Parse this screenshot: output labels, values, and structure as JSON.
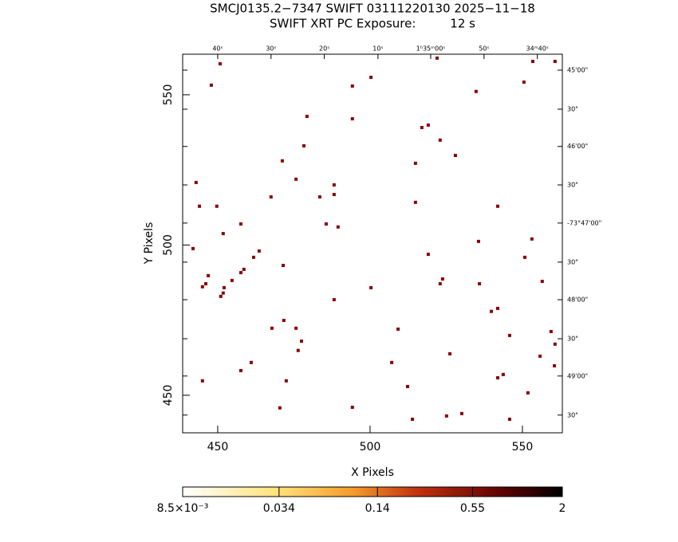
{
  "chart_data": {
    "type": "scatter",
    "title": "SMCJ0135.2−7347 SWIFT 03111220130 2025−11−18",
    "subtitle": "SWIFT XRT PC Exposure:         12 s",
    "x_label": "X Pixels",
    "y_label": "Y Pixels",
    "color": "#8b0000",
    "xlim": [
      438.5,
      563.1
    ],
    "ylim": [
      437.5,
      563.5
    ],
    "xticks": [
      450,
      500,
      550
    ],
    "yticks": [
      450,
      500,
      550
    ],
    "x2ticks": [
      {
        "value": 450.0,
        "label": "40ˢ"
      },
      {
        "value": 467.5,
        "label": "30ˢ"
      },
      {
        "value": 485.0,
        "label": "20ˢ"
      },
      {
        "value": 502.6,
        "label": "10ˢ"
      },
      {
        "value": 519.9,
        "label": "1ʰ35ᵐ00ˢ"
      },
      {
        "value": 537.4,
        "label": "50ˢ"
      },
      {
        "value": 554.9,
        "label": "34ᵐ40ˢ"
      }
    ],
    "y2ticks": [
      {
        "value": 558.2,
        "label": "45'00\""
      },
      {
        "value": 545.2,
        "label": "30\""
      },
      {
        "value": 532.8,
        "label": "46'00\""
      },
      {
        "value": 520.0,
        "label": "30\""
      },
      {
        "value": 507.3,
        "label": "-73°47'00\""
      },
      {
        "value": 494.3,
        "label": "30\""
      },
      {
        "value": 481.8,
        "label": "48'00\""
      },
      {
        "value": 468.8,
        "label": "30\""
      },
      {
        "value": 456.4,
        "label": "49'00\""
      },
      {
        "value": 443.4,
        "label": "30\""
      }
    ],
    "x": [
      450.8,
      447.9,
      442.9,
      444.0,
      449.7,
      441.9,
      451.8,
      457.6,
      463.6,
      461.8,
      458.6,
      457.6,
      446.9,
      446.1,
      445.0,
      452.1,
      454.7,
      451.8,
      451.0,
      471.5,
      467.5,
      471.2,
      475.7,
      478.3,
      479.3,
      494.2,
      500.3,
      494.2,
      488.2,
      488.2,
      483.5,
      485.6,
      489.5,
      488.2,
      500.3,
      471.7,
      467.8,
      475.7,
      477.5,
      476.4,
      461.0,
      457.6,
      445.0,
      472.5,
      470.4,
      494.2,
      509.2,
      507.1,
      512.3,
      513.9,
      514.9,
      517.0,
      519.1,
      522.0,
      523.0,
      528.0,
      534.8,
      514.9,
      519.1,
      523.0,
      523.8,
      535.6,
      535.9,
      541.9,
      539.8,
      541.9,
      545.8,
      526.2,
      541.9,
      543.7,
      530.1,
      525.1,
      545.8,
      550.5,
      553.4,
      560.7,
      553.1,
      550.8,
      556.5,
      559.4,
      560.7,
      555.8,
      560.5,
      551.8
    ],
    "y": [
      560.3,
      553.2,
      520.8,
      512.9,
      512.9,
      498.8,
      503.8,
      507.0,
      498.0,
      495.9,
      491.9,
      490.8,
      489.8,
      487.1,
      486.1,
      485.8,
      488.2,
      484.0,
      482.9,
      493.2,
      516.0,
      528.0,
      521.9,
      533.0,
      542.8,
      552.9,
      555.8,
      542.0,
      520.0,
      516.8,
      516.0,
      507.0,
      506.0,
      481.8,
      485.8,
      474.9,
      472.3,
      472.3,
      468.0,
      464.9,
      460.9,
      458.2,
      454.8,
      454.8,
      445.8,
      446.0,
      472.0,
      460.9,
      452.9,
      442.0,
      527.2,
      539.1,
      539.9,
      562.2,
      534.9,
      529.8,
      551.1,
      514.2,
      496.9,
      487.1,
      488.7,
      501.2,
      487.1,
      512.9,
      477.9,
      478.9,
      469.9,
      463.8,
      455.8,
      456.9,
      443.9,
      443.1,
      442.0,
      554.2,
      561.1,
      561.1,
      502.0,
      495.9,
      487.9,
      471.2,
      467.0,
      463.0,
      459.8,
      450.8
    ],
    "colorbar": {
      "log": true,
      "lim": [
        0.0085,
        2
      ],
      "ticks": [
        {
          "value": 0.0085,
          "label": "8.5×10⁻³"
        },
        0.034,
        0.14,
        0.55,
        2
      ]
    }
  }
}
